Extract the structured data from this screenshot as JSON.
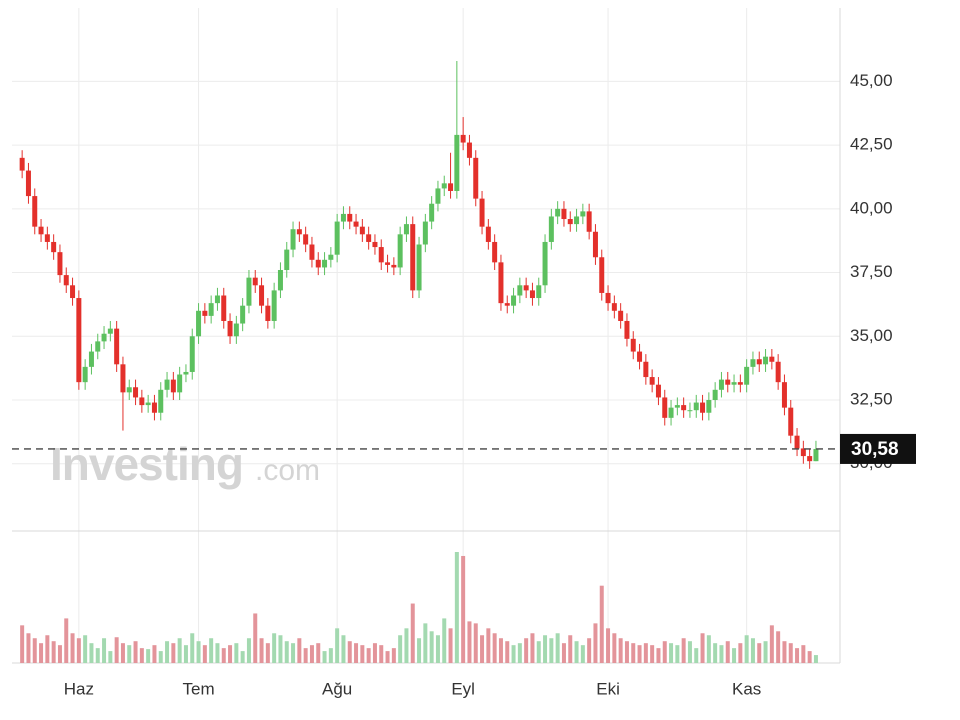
{
  "chart_data": {
    "type": "candlestick",
    "watermark": {
      "brand": "Investing",
      "suffix": ".com"
    },
    "categories": [
      null,
      null,
      null,
      null,
      null,
      null,
      null,
      null,
      null,
      "Haz",
      null,
      null,
      null,
      null,
      null,
      null,
      null,
      null,
      null,
      null,
      null,
      null,
      null,
      null,
      null,
      null,
      null,
      null,
      "Tem",
      null,
      null,
      null,
      null,
      null,
      null,
      null,
      null,
      null,
      null,
      null,
      null,
      null,
      null,
      null,
      null,
      null,
      null,
      null,
      null,
      null,
      "Ağu",
      null,
      null,
      null,
      null,
      null,
      null,
      null,
      null,
      null,
      null,
      null,
      null,
      null,
      null,
      null,
      null,
      null,
      null,
      null,
      "Eyl",
      null,
      null,
      null,
      null,
      null,
      null,
      null,
      null,
      null,
      null,
      null,
      null,
      null,
      null,
      null,
      null,
      null,
      null,
      null,
      null,
      null,
      null,
      "Eki",
      null,
      null,
      null,
      null,
      null,
      null,
      null,
      null,
      null,
      null,
      null,
      null,
      null,
      null,
      null,
      null,
      null,
      null,
      null,
      null,
      null,
      "Kas",
      null,
      null,
      null,
      null,
      null,
      null,
      null,
      null,
      null,
      null,
      null
    ],
    "open": [
      42.0,
      41.5,
      40.5,
      39.3,
      39.0,
      38.7,
      38.3,
      37.4,
      37.0,
      36.5,
      33.2,
      33.8,
      34.4,
      34.8,
      35.1,
      35.3,
      33.9,
      32.8,
      33.0,
      32.6,
      32.3,
      32.4,
      32.0,
      32.9,
      33.3,
      32.8,
      33.5,
      33.6,
      35.0,
      36.0,
      35.8,
      36.3,
      36.6,
      35.6,
      35.0,
      35.5,
      36.2,
      37.3,
      37.0,
      36.2,
      35.6,
      36.8,
      37.6,
      38.4,
      39.2,
      39.0,
      38.6,
      38.0,
      37.7,
      38.0,
      38.2,
      39.5,
      39.8,
      39.5,
      39.3,
      39.0,
      38.7,
      38.5,
      37.9,
      37.8,
      37.7,
      39.0,
      39.4,
      36.8,
      38.6,
      39.5,
      40.2,
      40.8,
      41.0,
      40.7,
      42.9,
      42.6,
      42.0,
      40.4,
      39.3,
      38.7,
      37.9,
      36.3,
      36.2,
      36.6,
      37.0,
      36.8,
      36.5,
      37.0,
      38.7,
      39.7,
      40.0,
      39.6,
      39.4,
      39.7,
      39.9,
      39.1,
      38.1,
      36.7,
      36.3,
      36.0,
      35.6,
      34.9,
      34.4,
      34.0,
      33.4,
      33.1,
      32.6,
      31.8,
      32.2,
      32.3,
      32.1,
      32.1,
      32.4,
      32.0,
      32.5,
      32.9,
      33.3,
      33.1,
      33.2,
      33.1,
      33.8,
      34.1,
      33.9,
      34.2,
      34.0,
      33.2,
      32.2,
      31.1,
      30.6,
      30.3,
      30.1
    ],
    "high": [
      42.3,
      41.8,
      40.8,
      39.6,
      39.3,
      39.0,
      38.6,
      37.7,
      37.3,
      36.8,
      34.1,
      34.7,
      35.1,
      35.4,
      35.6,
      35.6,
      34.2,
      33.3,
      33.3,
      32.9,
      32.7,
      32.7,
      33.2,
      33.6,
      33.6,
      33.8,
      33.9,
      35.3,
      36.3,
      36.3,
      36.6,
      36.9,
      36.9,
      35.9,
      35.8,
      36.5,
      37.6,
      37.6,
      37.3,
      36.5,
      37.1,
      37.9,
      38.7,
      39.5,
      39.5,
      39.3,
      38.9,
      38.3,
      38.3,
      38.5,
      39.8,
      40.1,
      40.1,
      39.8,
      39.6,
      39.3,
      39.0,
      38.8,
      38.2,
      38.1,
      39.3,
      39.7,
      39.7,
      38.9,
      39.8,
      40.5,
      41.1,
      41.3,
      42.2,
      45.8,
      43.6,
      42.9,
      42.3,
      40.7,
      39.6,
      39.0,
      38.2,
      36.6,
      36.9,
      37.3,
      37.3,
      37.1,
      37.3,
      39.0,
      40.0,
      40.3,
      40.3,
      39.9,
      40.0,
      40.2,
      40.2,
      39.4,
      38.4,
      37.0,
      36.6,
      36.3,
      35.9,
      35.2,
      34.7,
      34.3,
      33.7,
      33.4,
      32.9,
      32.5,
      32.6,
      32.6,
      32.4,
      32.7,
      32.7,
      32.8,
      33.2,
      33.6,
      33.6,
      33.5,
      33.5,
      34.1,
      34.4,
      34.4,
      34.5,
      34.5,
      34.3,
      33.5,
      32.5,
      31.4,
      30.9,
      30.6,
      30.9
    ],
    "low": [
      41.2,
      40.2,
      39.0,
      38.7,
      38.4,
      38.0,
      37.1,
      36.7,
      36.2,
      32.9,
      32.9,
      33.5,
      34.1,
      34.5,
      34.8,
      33.6,
      31.3,
      32.5,
      32.3,
      32.0,
      32.0,
      31.7,
      31.7,
      32.6,
      32.5,
      32.5,
      33.2,
      33.3,
      34.7,
      35.5,
      35.5,
      36.0,
      35.3,
      34.7,
      34.7,
      35.2,
      35.9,
      36.7,
      35.9,
      35.3,
      35.3,
      36.5,
      37.3,
      38.1,
      38.7,
      38.3,
      37.7,
      37.4,
      37.4,
      37.7,
      37.9,
      39.2,
      39.2,
      39.0,
      38.7,
      38.4,
      38.2,
      37.6,
      37.5,
      37.4,
      37.4,
      38.7,
      36.5,
      36.5,
      38.3,
      39.2,
      39.9,
      40.5,
      40.4,
      40.4,
      42.3,
      41.7,
      40.1,
      39.0,
      38.4,
      37.6,
      36.0,
      35.9,
      35.9,
      36.3,
      36.5,
      36.2,
      36.2,
      36.7,
      38.4,
      39.4,
      39.3,
      39.1,
      39.1,
      39.4,
      38.8,
      37.8,
      36.4,
      36.0,
      35.7,
      35.3,
      34.6,
      34.1,
      33.7,
      33.1,
      32.8,
      32.3,
      31.5,
      31.5,
      31.9,
      31.8,
      31.8,
      31.8,
      31.7,
      31.7,
      32.2,
      32.6,
      32.8,
      32.8,
      32.8,
      32.8,
      33.5,
      33.6,
      33.6,
      33.7,
      32.9,
      31.9,
      30.8,
      30.3,
      30.0,
      29.8,
      30.1
    ],
    "close": [
      41.5,
      40.5,
      39.3,
      39.0,
      38.7,
      38.3,
      37.4,
      37.0,
      36.5,
      33.2,
      33.8,
      34.4,
      34.8,
      35.1,
      35.3,
      33.9,
      32.8,
      33.0,
      32.6,
      32.3,
      32.4,
      32.0,
      32.9,
      33.3,
      32.8,
      33.5,
      33.6,
      35.0,
      36.0,
      35.8,
      36.3,
      36.6,
      35.6,
      35.0,
      35.5,
      36.2,
      37.3,
      37.0,
      36.2,
      35.6,
      36.8,
      37.6,
      38.4,
      39.2,
      39.0,
      38.6,
      38.0,
      37.7,
      38.0,
      38.2,
      39.5,
      39.8,
      39.5,
      39.3,
      39.0,
      38.7,
      38.5,
      37.9,
      37.8,
      37.7,
      39.0,
      39.4,
      36.8,
      38.6,
      39.5,
      40.2,
      40.8,
      41.0,
      40.7,
      42.9,
      42.6,
      42.0,
      40.4,
      39.3,
      38.7,
      37.9,
      36.3,
      36.2,
      36.6,
      37.0,
      36.8,
      36.5,
      37.0,
      38.7,
      39.7,
      40.0,
      39.6,
      39.4,
      39.7,
      39.9,
      39.1,
      38.1,
      36.7,
      36.3,
      36.0,
      35.6,
      34.9,
      34.4,
      34.0,
      33.4,
      33.1,
      32.6,
      31.8,
      32.2,
      32.3,
      32.1,
      32.1,
      32.4,
      32.0,
      32.5,
      32.9,
      33.3,
      33.1,
      33.2,
      33.1,
      33.8,
      34.1,
      33.9,
      34.2,
      34.0,
      33.2,
      32.2,
      31.1,
      30.6,
      30.3,
      30.1,
      30.58
    ],
    "volume": [
      38,
      30,
      25,
      20,
      28,
      22,
      18,
      45,
      30,
      25,
      28,
      20,
      15,
      25,
      12,
      26,
      20,
      18,
      22,
      15,
      14,
      18,
      12,
      22,
      20,
      25,
      18,
      30,
      22,
      18,
      25,
      20,
      15,
      18,
      20,
      12,
      25,
      50,
      25,
      20,
      30,
      28,
      22,
      20,
      25,
      15,
      18,
      20,
      12,
      15,
      35,
      28,
      22,
      20,
      18,
      15,
      20,
      18,
      12,
      15,
      28,
      35,
      60,
      25,
      40,
      32,
      28,
      45,
      35,
      112,
      108,
      42,
      40,
      28,
      35,
      30,
      25,
      22,
      18,
      20,
      25,
      30,
      22,
      28,
      25,
      30,
      20,
      28,
      22,
      18,
      25,
      40,
      78,
      35,
      30,
      25,
      22,
      20,
      18,
      20,
      18,
      15,
      22,
      20,
      18,
      25,
      22,
      15,
      30,
      28,
      20,
      18,
      22,
      15,
      20,
      28,
      25,
      20,
      22,
      38,
      32,
      22,
      20,
      15,
      18,
      12,
      8
    ],
    "up_color": "#5cc05f",
    "down_color": "#e3302b",
    "up_volume_color": "#a3d9b0",
    "down_volume_color": "#e3949a",
    "ylim": [
      27.4,
      47.8
    ],
    "yticks": [
      {
        "value": 30,
        "label": "30,00"
      },
      {
        "value": 32.5,
        "label": "32,50"
      },
      {
        "value": 35,
        "label": "35,00"
      },
      {
        "value": 37.5,
        "label": "37,50"
      },
      {
        "value": 40,
        "label": "40,00"
      },
      {
        "value": 42.5,
        "label": "42,50"
      },
      {
        "value": 45,
        "label": "45,00"
      }
    ],
    "last_price": {
      "value": 30.58,
      "label": "30,58"
    },
    "grid": true
  }
}
